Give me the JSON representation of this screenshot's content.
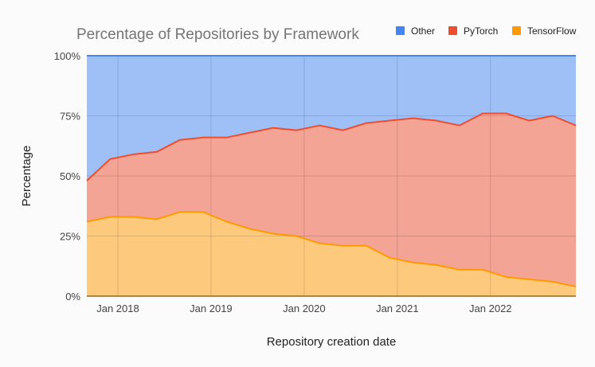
{
  "chart_data": {
    "type": "area",
    "stacked": true,
    "title": "Percentage of Repositories by Framework",
    "xlabel": "Repository creation date",
    "ylabel": "Percentage",
    "ylim": [
      0,
      100
    ],
    "yticks": [
      "0%",
      "25%",
      "50%",
      "75%",
      "100%"
    ],
    "ytick_values": [
      0,
      25,
      50,
      75,
      100
    ],
    "xticks": [
      "Jan 2018",
      "Jan 2019",
      "Jan 2020",
      "Jan 2021",
      "Jan 2022"
    ],
    "xtick_values": [
      "2018-01",
      "2019-01",
      "2020-01",
      "2021-01",
      "2022-01"
    ],
    "xlim": [
      "2017-09",
      "2022-12"
    ],
    "grid": true,
    "legend_position": "top-right",
    "x": [
      "2017-09",
      "2017-12",
      "2018-03",
      "2018-06",
      "2018-09",
      "2018-12",
      "2019-03",
      "2019-06",
      "2019-09",
      "2019-12",
      "2020-03",
      "2020-06",
      "2020-09",
      "2020-12",
      "2021-03",
      "2021-06",
      "2021-09",
      "2021-12",
      "2022-03",
      "2022-06",
      "2022-09",
      "2022-12"
    ],
    "series": [
      {
        "name": "TensorFlow",
        "color": "#ff9900",
        "values": [
          31,
          33,
          33,
          32,
          35,
          35,
          31,
          28,
          26,
          25,
          22,
          21,
          21,
          16,
          14,
          13,
          11,
          11,
          8,
          7,
          6,
          4
        ]
      },
      {
        "name": "PyTorch",
        "color": "#ee4d30",
        "values": [
          17,
          24,
          26,
          28,
          30,
          31,
          35,
          40,
          44,
          44,
          49,
          48,
          51,
          57,
          60,
          60,
          60,
          65,
          68,
          66,
          69,
          67
        ]
      },
      {
        "name": "Other",
        "color": "#4285f4",
        "values": [
          52,
          43,
          41,
          40,
          35,
          34,
          34,
          32,
          30,
          31,
          29,
          31,
          28,
          27,
          26,
          27,
          29,
          24,
          24,
          27,
          25,
          29
        ]
      }
    ],
    "legend_order": [
      "Other",
      "PyTorch",
      "TensorFlow"
    ]
  }
}
